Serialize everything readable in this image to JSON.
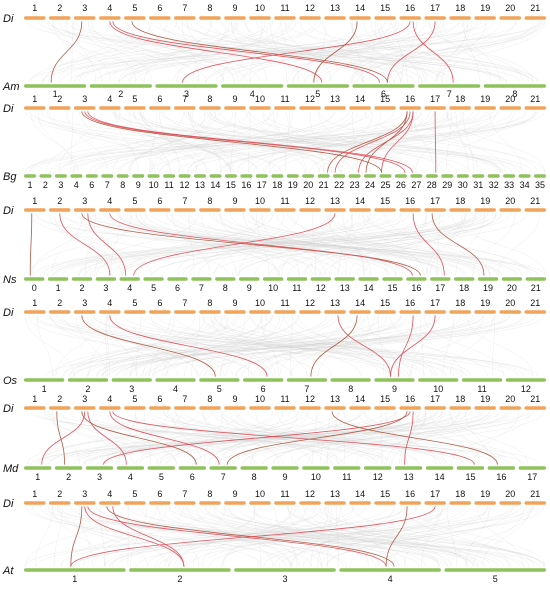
{
  "colors": {
    "top": "#f2a35a",
    "bottom": "#8ec25a",
    "background_links": "#d0d0d0",
    "highlight_links": "#e0505a"
  },
  "di_labels": [
    "1",
    "2",
    "3",
    "4",
    "5",
    "6",
    "7",
    "8",
    "9",
    "10",
    "11",
    "12",
    "13",
    "14",
    "15",
    "16",
    "17",
    "18",
    "19",
    "20",
    "21"
  ],
  "panels": [
    {
      "top_name": "Di",
      "bottom_name": "Am",
      "bottom_labels": [
        "1",
        "2",
        "3",
        "4",
        "5",
        "6",
        "7",
        "8"
      ],
      "links": [
        [
          3,
          1
        ],
        [
          4,
          5
        ],
        [
          4,
          6
        ],
        [
          5,
          6
        ],
        [
          16,
          3
        ],
        [
          16,
          7
        ],
        [
          14,
          5
        ],
        [
          17,
          6
        ]
      ]
    },
    {
      "top_name": "Di",
      "bottom_name": "Bg",
      "bottom_labels": [
        "1",
        "2",
        "3",
        "4",
        "6",
        "7",
        "8",
        "9",
        "10",
        "11",
        "12",
        "13",
        "14",
        "15",
        "16",
        "17",
        "18",
        "19",
        "20",
        "21",
        "22",
        "23",
        "24",
        "25",
        "26",
        "27",
        "28",
        "29",
        "30",
        "31",
        "32",
        "33",
        "34",
        "35"
      ],
      "links": [
        [
          3,
          24
        ],
        [
          3,
          25
        ],
        [
          3,
          26
        ],
        [
          16,
          20
        ],
        [
          16,
          21
        ],
        [
          16,
          22
        ],
        [
          16,
          23
        ],
        [
          17,
          27
        ],
        [
          16,
          24
        ]
      ]
    },
    {
      "top_name": "Di",
      "bottom_name": "Ns",
      "bottom_labels": [
        "0",
        "1",
        "2",
        "3",
        "4",
        "5",
        "6",
        "7",
        "8",
        "9",
        "10",
        "11",
        "12",
        "13",
        "14",
        "15",
        "16",
        "17",
        "18",
        "19",
        "20",
        "21"
      ],
      "links": [
        [
          1,
          1
        ],
        [
          2,
          4
        ],
        [
          3,
          5
        ],
        [
          3,
          17
        ],
        [
          4,
          17
        ],
        [
          16,
          18
        ],
        [
          17,
          20
        ],
        [
          13,
          5
        ]
      ]
    },
    {
      "top_name": "Di",
      "bottom_name": "Os",
      "bottom_labels": [
        "1",
        "2",
        "3",
        "4",
        "5",
        "6",
        "7",
        "8",
        "9",
        "10",
        "11",
        "12"
      ],
      "links": [
        [
          3,
          5
        ],
        [
          4,
          6
        ],
        [
          13,
          9
        ],
        [
          14,
          7
        ],
        [
          17,
          9
        ],
        [
          16,
          9
        ]
      ]
    },
    {
      "top_name": "Di",
      "bottom_name": "Md",
      "bottom_labels": [
        "1",
        "2",
        "3",
        "4",
        "5",
        "6",
        "7",
        "8",
        "9",
        "10",
        "11",
        "12",
        "13",
        "14",
        "15",
        "16",
        "17"
      ],
      "links": [
        [
          2,
          2
        ],
        [
          3,
          1
        ],
        [
          3,
          4
        ],
        [
          3,
          6
        ],
        [
          4,
          7
        ],
        [
          4,
          15
        ],
        [
          13,
          16
        ],
        [
          16,
          3
        ],
        [
          16,
          13
        ],
        [
          16,
          7
        ]
      ]
    },
    {
      "top_name": "Di",
      "bottom_name": "At",
      "bottom_labels": [
        "1",
        "2",
        "3",
        "4",
        "5"
      ],
      "links": [
        [
          3,
          1
        ],
        [
          3,
          2
        ],
        [
          3,
          4
        ],
        [
          4,
          4
        ],
        [
          17,
          1
        ],
        [
          4,
          2
        ],
        [
          16,
          4
        ]
      ]
    }
  ]
}
